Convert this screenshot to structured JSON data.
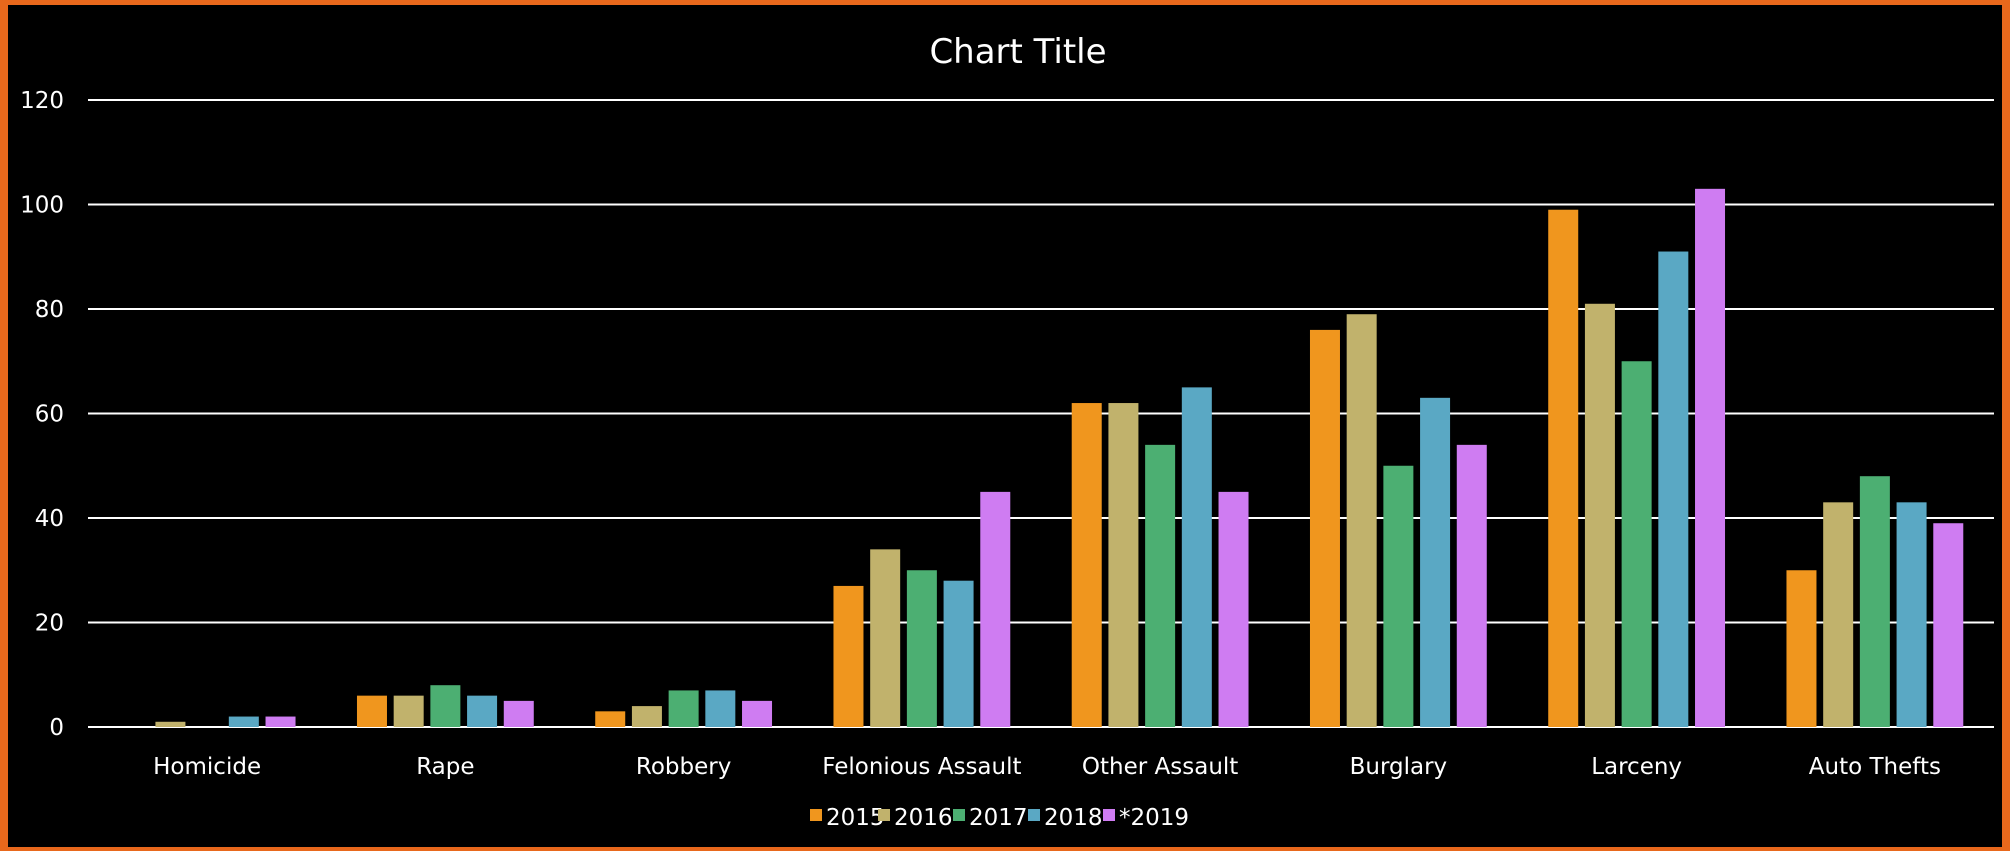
{
  "chart_data": {
    "type": "bar",
    "title": "Chart Title",
    "categories": [
      "Homicide",
      "Rape",
      "Robbery",
      "Felonious Assault",
      "Other Assault",
      "Burglary",
      "Larceny",
      "Auto Thefts"
    ],
    "series": [
      {
        "name": "2015",
        "color": "#f0961e",
        "values": [
          0,
          6,
          3,
          27,
          62,
          76,
          99,
          30
        ]
      },
      {
        "name": "2016",
        "color": "#c1b26c",
        "values": [
          1,
          6,
          4,
          34,
          62,
          79,
          81,
          43
        ]
      },
      {
        "name": "2017",
        "color": "#4caf72",
        "values": [
          0,
          8,
          7,
          30,
          54,
          50,
          70,
          48
        ]
      },
      {
        "name": "2018",
        "color": "#5aa8c4",
        "values": [
          2,
          6,
          7,
          28,
          65,
          63,
          91,
          43
        ]
      },
      {
        "name": "*2019",
        "color": "#cf7cf2",
        "values": [
          2,
          5,
          5,
          45,
          45,
          54,
          103,
          39
        ]
      }
    ],
    "ylim": [
      0,
      120
    ],
    "yticks": [
      0,
      20,
      40,
      60,
      80,
      100,
      120
    ],
    "grid": true,
    "legend": "bottom-center"
  }
}
